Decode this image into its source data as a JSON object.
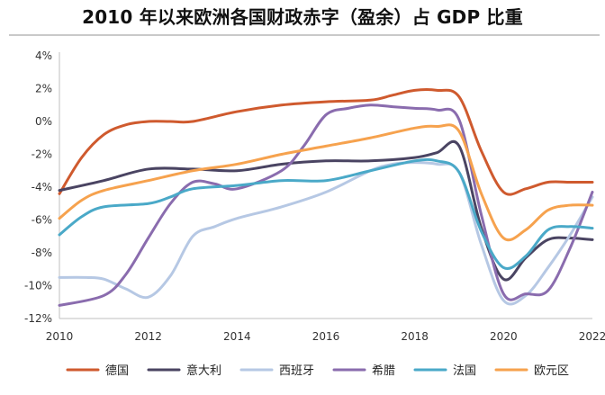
{
  "title": "2010 年以来欧洲各国财政赤字（盈余）占 GDP 比重",
  "chart_data": {
    "type": "line",
    "title": "2010 年以来欧洲各国财政赤字（盈余）占 GDP 比重",
    "xlabel": "",
    "ylabel": "",
    "xlim": [
      2010,
      2022
    ],
    "ylim": [
      -12,
      4
    ],
    "x_ticks": [
      "2010",
      "2012",
      "2014",
      "2016",
      "2018",
      "2020",
      "2022"
    ],
    "x_tick_values": [
      2010,
      2012,
      2014,
      2016,
      2018,
      2020,
      2022
    ],
    "y_ticks": [
      "4%",
      "2%",
      "0%",
      "-2%",
      "-4%",
      "-6%",
      "-8%",
      "-10%",
      "-12%"
    ],
    "y_tick_values": [
      4,
      2,
      0,
      -2,
      -4,
      -6,
      -8,
      -10,
      -12
    ],
    "grid": false,
    "legend_position": "bottom",
    "series": [
      {
        "name": "德国",
        "color": "#cf5a2e",
        "x": [
          2010,
          2010.5,
          2011,
          2011.5,
          2012,
          2012.5,
          2013,
          2014,
          2015,
          2016,
          2017,
          2017.5,
          2018,
          2018.5,
          2019,
          2019.5,
          2020,
          2020.5,
          2021,
          2021.5,
          2022
        ],
        "values": [
          -4.4,
          -2.2,
          -0.8,
          -0.2,
          0.0,
          0.0,
          0.0,
          0.6,
          1.0,
          1.2,
          1.3,
          1.6,
          1.9,
          1.9,
          1.5,
          -1.8,
          -4.3,
          -4.1,
          -3.7,
          -3.7,
          -3.7
        ]
      },
      {
        "name": "意大利",
        "color": "#4a4462",
        "x": [
          2010,
          2011,
          2012,
          2013,
          2014,
          2015,
          2016,
          2017,
          2018,
          2018.5,
          2019,
          2019.5,
          2020,
          2020.5,
          2021,
          2021.5,
          2022
        ],
        "values": [
          -4.2,
          -3.6,
          -2.9,
          -2.9,
          -3.0,
          -2.6,
          -2.4,
          -2.4,
          -2.2,
          -1.9,
          -1.5,
          -6.5,
          -9.6,
          -8.3,
          -7.2,
          -7.1,
          -7.2
        ]
      },
      {
        "name": "西班牙",
        "color": "#b6c8e4",
        "x": [
          2010,
          2010.6,
          2011,
          2011.5,
          2012,
          2012.5,
          2013,
          2013.5,
          2014,
          2015,
          2016,
          2017,
          2017.5,
          2018,
          2018.5,
          2019,
          2019.5,
          2020,
          2020.5,
          2021,
          2021.5,
          2022
        ],
        "values": [
          -9.5,
          -9.5,
          -9.6,
          -10.2,
          -10.7,
          -9.4,
          -7.0,
          -6.4,
          -5.9,
          -5.2,
          -4.3,
          -3.0,
          -2.6,
          -2.5,
          -2.6,
          -3.1,
          -7.5,
          -10.9,
          -10.6,
          -8.9,
          -6.9,
          -4.6
        ]
      },
      {
        "name": "希腊",
        "color": "#8a6cae",
        "x": [
          2010,
          2011,
          2011.5,
          2012,
          2012.5,
          2013,
          2013.5,
          2014,
          2015,
          2015.5,
          2016,
          2016.5,
          2017,
          2017.5,
          2018,
          2018.5,
          2019,
          2019.5,
          2020,
          2020.5,
          2021,
          2021.5,
          2022
        ],
        "values": [
          -11.2,
          -10.6,
          -9.3,
          -7.1,
          -5.0,
          -3.7,
          -3.8,
          -4.1,
          -3.0,
          -1.5,
          0.4,
          0.8,
          1.0,
          0.9,
          0.8,
          0.7,
          0.1,
          -5.7,
          -10.5,
          -10.5,
          -10.3,
          -7.7,
          -4.3
        ]
      },
      {
        "name": "法国",
        "color": "#4aa9c8",
        "x": [
          2010,
          2010.5,
          2011,
          2012,
          2012.5,
          2013,
          2014,
          2015,
          2016,
          2017,
          2018,
          2018.5,
          2019,
          2019.5,
          2020,
          2020.5,
          2021,
          2021.5,
          2022
        ],
        "values": [
          -6.9,
          -5.8,
          -5.2,
          -5.0,
          -4.6,
          -4.1,
          -3.9,
          -3.6,
          -3.6,
          -3.0,
          -2.4,
          -2.4,
          -3.1,
          -6.7,
          -8.9,
          -8.2,
          -6.6,
          -6.4,
          -6.5
        ]
      },
      {
        "name": "欧元区",
        "color": "#f6a24e",
        "x": [
          2010,
          2010.5,
          2011,
          2012,
          2013,
          2014,
          2015,
          2016,
          2017,
          2018,
          2018.5,
          2019,
          2019.5,
          2020,
          2020.5,
          2021,
          2021.5,
          2022
        ],
        "values": [
          -5.9,
          -4.8,
          -4.2,
          -3.6,
          -3.0,
          -2.6,
          -2.0,
          -1.5,
          -1.0,
          -0.4,
          -0.3,
          -0.6,
          -4.4,
          -7.1,
          -6.6,
          -5.4,
          -5.1,
          -5.1
        ]
      }
    ]
  }
}
